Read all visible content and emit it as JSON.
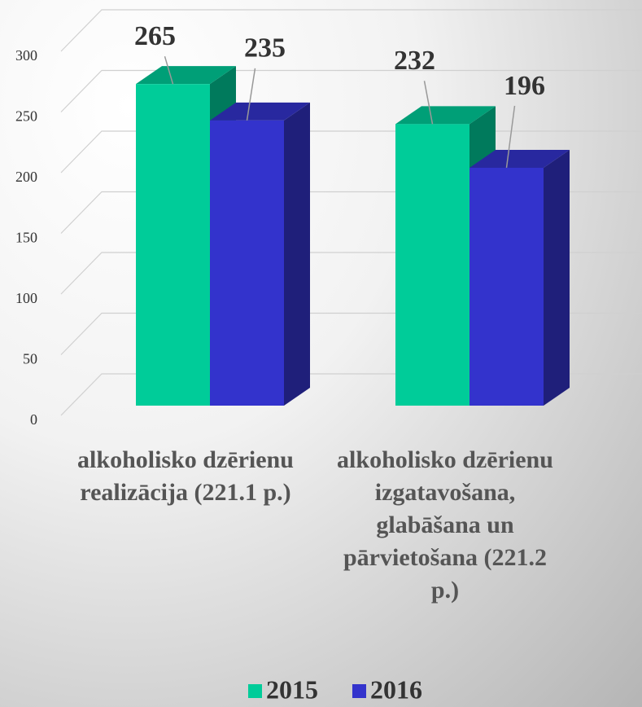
{
  "chart_data": {
    "type": "bar3d",
    "categories": [
      "alkoholisko dzērienu realizācija (221.1 p.)",
      "alkoholisko dzērienu izgatavošana, glabāšana un pārvietošana (221.2 p.)"
    ],
    "series": [
      {
        "name": "2015",
        "color": "#00cc99",
        "values": [
          265,
          232
        ]
      },
      {
        "name": "2016",
        "color": "#3333cc",
        "values": [
          235,
          196
        ]
      }
    ],
    "ylim": [
      0,
      300
    ],
    "yticks": [
      0,
      50,
      100,
      150,
      200,
      250,
      300
    ],
    "grid": true,
    "legend": "bottom"
  }
}
